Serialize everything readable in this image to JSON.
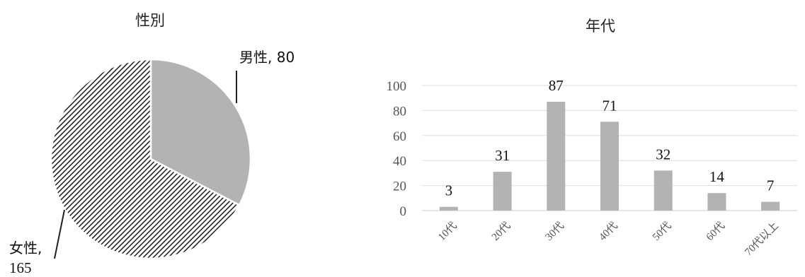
{
  "chart_data": [
    {
      "type": "pie",
      "title": "性別",
      "slices": [
        {
          "label": "男性",
          "value": 80,
          "label_text": "男性, 80",
          "fill": "#b3b3b3"
        },
        {
          "label": "女性",
          "value": 165,
          "label_text_line1": "女性,",
          "label_text_line2": "165",
          "fill": "hatched"
        }
      ]
    },
    {
      "type": "bar",
      "title": "年代",
      "categories": [
        "10代",
        "20代",
        "30代",
        "40代",
        "50代",
        "60代",
        "70代以上"
      ],
      "values": [
        3,
        31,
        87,
        71,
        32,
        14,
        7
      ],
      "ylim": [
        0,
        100
      ],
      "yticks": [
        "0",
        "20",
        "40",
        "60",
        "80",
        "100"
      ],
      "grid": true,
      "bar_color": "#b3b3b3"
    }
  ]
}
